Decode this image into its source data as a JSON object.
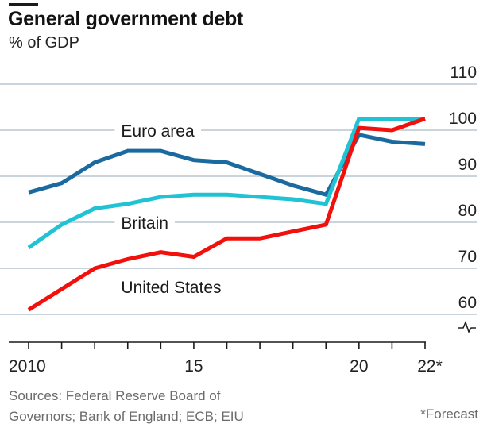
{
  "header": {
    "title": "General government debt",
    "subtitle": "% of GDP"
  },
  "footer": {
    "sources": [
      "Sources: Federal Reserve Board of",
      "Governors; Bank of England; ECB; EIU"
    ],
    "footnote": "*Forecast"
  },
  "colors": {
    "euro_area": "#1a6aa0",
    "britain": "#1fc3d4",
    "united_states": "#f2100c",
    "grid": "#b9c6d2",
    "axis": "#1a1a1a"
  },
  "chart_data": {
    "type": "line",
    "title": "General government debt",
    "subtitle": "% of GDP",
    "xlabel": "",
    "ylabel": "% of GDP",
    "x": [
      2010,
      2011,
      2012,
      2013,
      2014,
      2015,
      2016,
      2017,
      2018,
      2019,
      2020,
      2021,
      2022
    ],
    "x_tick_labels": [
      {
        "x": 2010,
        "label": "2010"
      },
      {
        "x": 2015,
        "label": "15"
      },
      {
        "x": 2020,
        "label": "20"
      },
      {
        "x": 2022,
        "label": "22*"
      }
    ],
    "ylim": [
      60,
      110
    ],
    "y_axis_break": true,
    "y_ticks": [
      60,
      70,
      80,
      90,
      100,
      110
    ],
    "y_tick_labels": [
      "60",
      "70",
      "80",
      "90",
      "100",
      "110"
    ],
    "y_axis_position": "right",
    "grid": true,
    "legend": "inline labels",
    "series": [
      {
        "name": "Euro area",
        "key": "euro_area",
        "values": [
          86.5,
          88.5,
          93,
          95.5,
          95.5,
          93.5,
          93,
          90.5,
          88,
          86,
          99,
          97.5,
          97
        ],
        "label_at": {
          "x": 2012.8,
          "y": 100
        }
      },
      {
        "name": "Britain",
        "key": "britain",
        "values": [
          74.5,
          79.5,
          83,
          84,
          85.5,
          86,
          86,
          85.5,
          85,
          84,
          102.5,
          102.5,
          102.5
        ],
        "label_at": {
          "x": 2012.8,
          "y": 80
        }
      },
      {
        "name": "United States",
        "key": "united_states",
        "values": [
          61,
          65.5,
          70,
          72,
          73.5,
          72.5,
          76.5,
          76.5,
          78,
          79.5,
          100.5,
          100,
          102.5
        ],
        "label_at": {
          "x": 2012.8,
          "y": 66
        }
      }
    ],
    "annotations": [
      "*Forecast"
    ]
  }
}
